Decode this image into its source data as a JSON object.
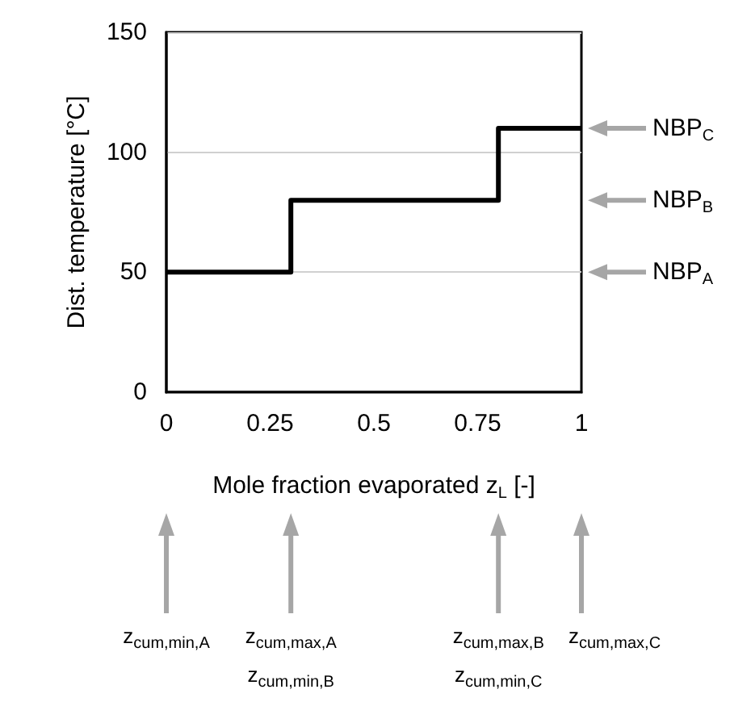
{
  "chart_data": {
    "type": "step",
    "x": [
      0,
      0.3,
      0.8,
      1
    ],
    "values": [
      50,
      80,
      110,
      110
    ],
    "color": "#000000",
    "xlabel": "Mole fraction evaporated z$_{L}$ [-]",
    "ylabel": "Dist. temperature [°C]",
    "xlim": [
      0,
      1
    ],
    "ylim": [
      0,
      150
    ],
    "xticks": [
      0,
      0.25,
      0.5,
      0.75,
      1
    ],
    "yticks": [
      0,
      50,
      100,
      150
    ],
    "grid": "y",
    "marker": "none",
    "line_style": "solid",
    "annotations": [
      "NBP$_{C}$",
      "NBP$_{B}$",
      "NBP$_{A}$",
      "z$_{cum,min,A}$",
      "z$_{cum,max,A}$",
      "z$_{cum,min,B}$",
      "z$_{cum,max,B}$",
      "z$_{cum,min,C}$",
      "z$_{cum,max,C}$"
    ]
  }
}
